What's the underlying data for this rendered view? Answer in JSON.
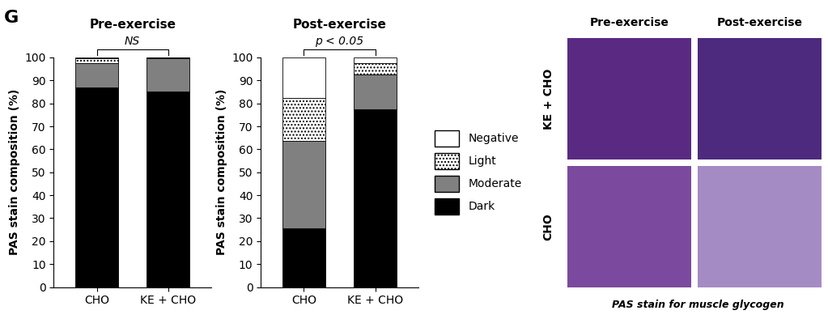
{
  "panel_label": "G",
  "chart_data": [
    {
      "type": "bar",
      "stacked": true,
      "title": "Pre-exercise",
      "annotations": [
        "NS"
      ],
      "ylabel": "PAS stain composition (%)",
      "categories": [
        "CHO",
        "KE + CHO"
      ],
      "series": [
        {
          "name": "Dark",
          "color": "#000000",
          "values": [
            87,
            85
          ]
        },
        {
          "name": "Moderate",
          "color": "#808080",
          "values": [
            10.5,
            14.5
          ]
        },
        {
          "name": "Light",
          "color": "#ffffff",
          "values": [
            2,
            0.3
          ]
        },
        {
          "name": "Negative",
          "color": "#ffffff",
          "values": [
            0.5,
            0.2
          ]
        }
      ],
      "ylim": [
        0,
        100
      ],
      "yticks": [
        0,
        10,
        20,
        30,
        40,
        50,
        60,
        70,
        80,
        90,
        100
      ]
    },
    {
      "type": "bar",
      "stacked": true,
      "title": "Post-exercise",
      "annotations": [
        "p < 0.05"
      ],
      "ylabel": "PAS stain composition (%)",
      "categories": [
        "CHO",
        "KE + CHO"
      ],
      "series": [
        {
          "name": "Dark",
          "color": "#000000",
          "values": [
            25.5,
            77.5
          ]
        },
        {
          "name": "Moderate",
          "color": "#808080",
          "values": [
            38,
            15
          ]
        },
        {
          "name": "Light",
          "color": "#ffffff",
          "values": [
            19,
            5
          ]
        },
        {
          "name": "Negative",
          "color": "#ffffff",
          "values": [
            17.5,
            2.5
          ]
        }
      ],
      "ylim": [
        0,
        100
      ],
      "yticks": [
        0,
        10,
        20,
        30,
        40,
        50,
        60,
        70,
        80,
        90,
        100
      ],
      "legend": "center left"
    }
  ],
  "image_panel": {
    "columns": [
      "Pre-exercise",
      "Post-exercise"
    ],
    "rows": [
      "KE + CHO",
      "CHO"
    ],
    "caption": "PAS stain for muscle glycogen"
  }
}
